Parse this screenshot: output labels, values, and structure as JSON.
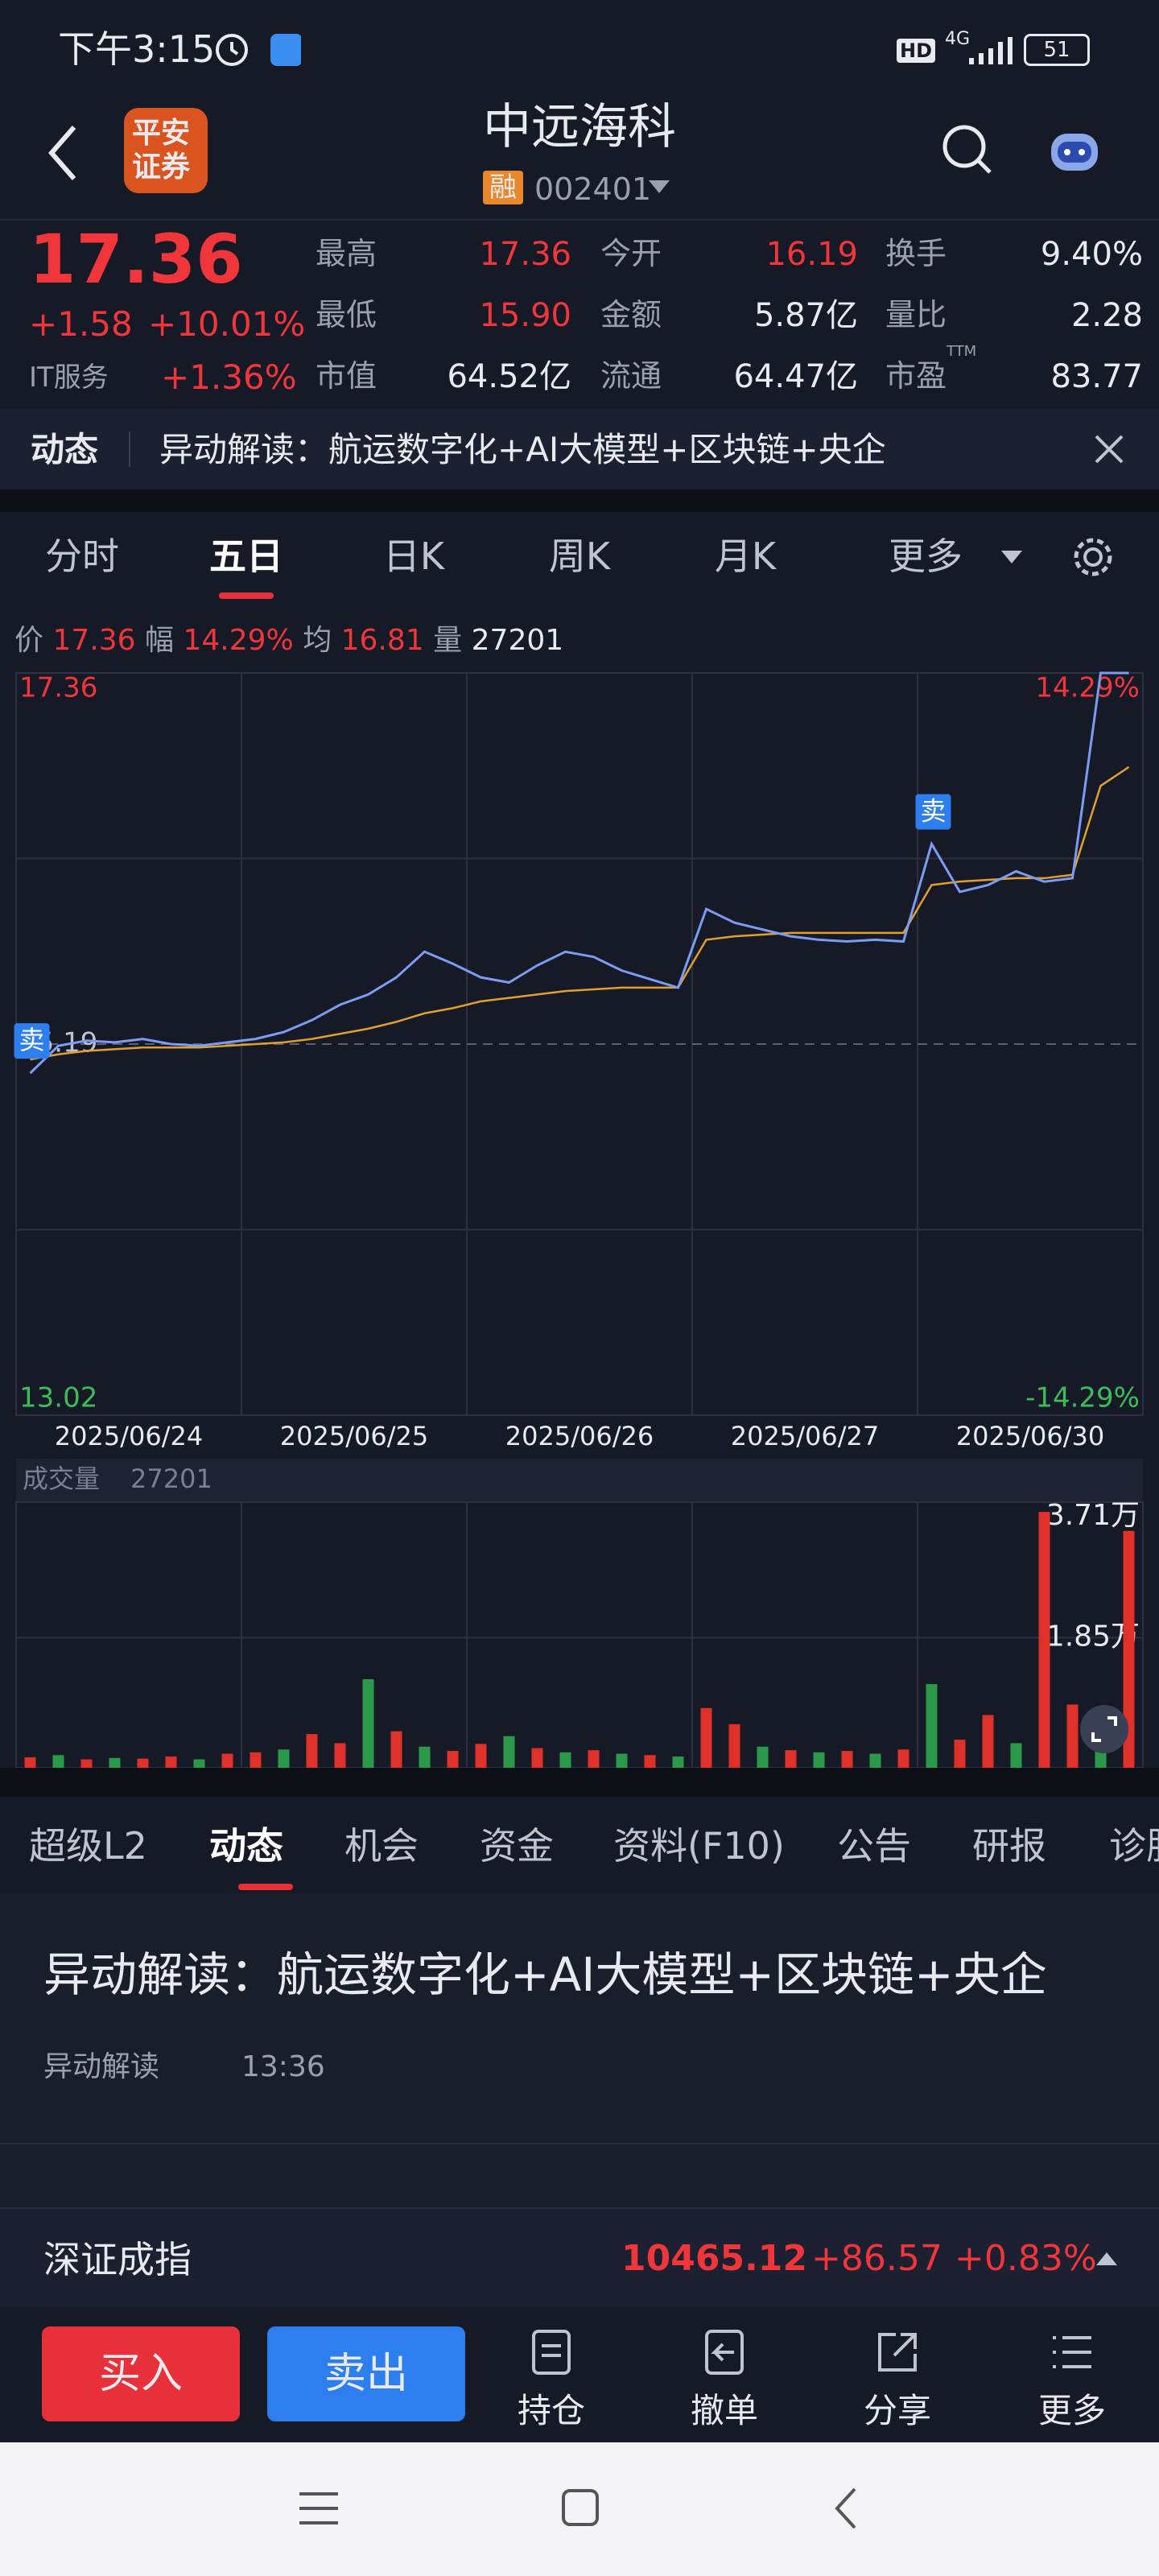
{
  "status_bar": {
    "time": "下午3:15",
    "hd": "HD",
    "network": "4G",
    "battery": "51"
  },
  "header": {
    "logo": [
      "平安",
      "证券"
    ],
    "name": "中远海科",
    "tag": "融",
    "code": "002401"
  },
  "quote": {
    "price": "17.36",
    "change": "+1.58",
    "change_pct": "+10.01%",
    "sector": "IT服务",
    "sector_pct": "+1.36%",
    "fields": [
      {
        "label": "最高",
        "value": "17.36"
      },
      {
        "label": "今开",
        "value": "16.19"
      },
      {
        "label": "换手",
        "value": "9.40%"
      },
      {
        "label": "最低",
        "value": "15.90"
      },
      {
        "label": "金额",
        "value": "5.87亿"
      },
      {
        "label": "量比",
        "value": "2.28"
      },
      {
        "label": "市值",
        "value": "64.52亿"
      },
      {
        "label": "流通",
        "value": "64.47亿"
      },
      {
        "label": "市盈",
        "value": "83.77"
      }
    ],
    "pe_note": "TTM"
  },
  "ticker": {
    "label": "动态",
    "text": "异动解读：航运数字化+AI大模型+区块链+央企"
  },
  "chart_tabs": {
    "items": [
      "分时",
      "五日",
      "日K",
      "周K",
      "月K",
      "更多"
    ],
    "active": 1
  },
  "info": {
    "price_label": "价",
    "price": "17.36",
    "range_label": "幅",
    "range": "14.29%",
    "avg_label": "均",
    "avg": "16.81",
    "vol_label": "量",
    "vol": "27201"
  },
  "chart_data": [
    {
      "type": "line",
      "days": [
        "2025/06/24",
        "2025/06/25",
        "2025/06/26",
        "2025/06/27",
        "2025/06/30"
      ],
      "series": [
        {
          "name": "价",
          "color": "#7b9cf0",
          "values": [
            15.02,
            15.18,
            15.21,
            15.2,
            15.22,
            15.19,
            15.18,
            15.2,
            15.22,
            15.26,
            15.33,
            15.42,
            15.48,
            15.58,
            15.73,
            15.66,
            15.58,
            15.55,
            15.65,
            15.73,
            15.7,
            15.62,
            15.57,
            15.52,
            15.98,
            15.9,
            15.86,
            15.82,
            15.8,
            15.79,
            15.8,
            15.79,
            16.36,
            16.08,
            16.12,
            16.2,
            16.14,
            16.16,
            17.36,
            17.36
          ]
        },
        {
          "name": "均",
          "color": "#e0a030",
          "values": [
            15.1,
            15.13,
            15.15,
            15.16,
            15.17,
            15.17,
            15.17,
            15.18,
            15.19,
            15.2,
            15.22,
            15.25,
            15.28,
            15.32,
            15.37,
            15.4,
            15.44,
            15.46,
            15.48,
            15.5,
            15.51,
            15.52,
            15.52,
            15.52,
            15.8,
            15.82,
            15.83,
            15.84,
            15.84,
            15.84,
            15.84,
            15.84,
            16.12,
            16.14,
            16.15,
            16.16,
            16.16,
            16.18,
            16.7,
            16.81
          ]
        }
      ],
      "ylim": [
        13.02,
        17.36
      ],
      "yticks": [
        13.02,
        15.19,
        17.36
      ],
      "y2lim": [
        -14.29,
        14.29
      ],
      "y2ticks": [
        {
          "value": -14.29,
          "label": "-14.29%"
        },
        {
          "value": 14.29,
          "label": "14.29%"
        }
      ],
      "grid": true,
      "annotations": [
        {
          "label": "卖",
          "at": 0
        },
        {
          "label": "卖",
          "at": 32
        }
      ]
    },
    {
      "type": "bar",
      "title": "成交量",
      "subtitle": "27201",
      "values": [
        1500,
        1800,
        1200,
        1400,
        1300,
        1600,
        1200,
        2000,
        2200,
        2600,
        4800,
        3500,
        12600,
        5200,
        3000,
        2400,
        3400,
        4500,
        2800,
        2200,
        2500,
        2000,
        1800,
        1600,
        8500,
        6200,
        3000,
        2500,
        2200,
        2400,
        2000,
        2600,
        11900,
        4000,
        7500,
        3500,
        36400,
        9000,
        5000,
        33700
      ],
      "colors": [
        "#e0302a",
        "#2a9a4a",
        "#e0302a",
        "#2a9a4a",
        "#e0302a",
        "#e0302a",
        "#2a9a4a",
        "#e0302a",
        "#e0302a",
        "#2a9a4a",
        "#e0302a",
        "#e0302a",
        "#2a9a4a",
        "#e0302a",
        "#2a9a4a",
        "#e0302a",
        "#e0302a",
        "#2a9a4a",
        "#e0302a",
        "#2a9a4a",
        "#e0302a",
        "#2a9a4a",
        "#e0302a",
        "#2a9a4a",
        "#e0302a",
        "#e0302a",
        "#2a9a4a",
        "#e0302a",
        "#2a9a4a",
        "#e0302a",
        "#2a9a4a",
        "#e0302a",
        "#2a9a4a",
        "#e0302a",
        "#e0302a",
        "#2a9a4a",
        "#e0302a",
        "#e0302a",
        "#2a9a4a",
        "#e0302a"
      ],
      "ylim": [
        0,
        37100
      ],
      "yticks": [
        {
          "value": 18500,
          "label": "1.85万"
        },
        {
          "value": 37100,
          "label": "3.71万"
        }
      ],
      "grid": true
    }
  ],
  "content_tabs": {
    "items": [
      "超级L2",
      "动态",
      "机会",
      "资金",
      "资料(F10)",
      "公告",
      "研报",
      "诊股"
    ],
    "active": 1
  },
  "news": {
    "title": "异动解读：航运数字化+AI大模型+区块链+央企",
    "source": "异动解读",
    "time": "13:36"
  },
  "index": {
    "name": "深证成指",
    "value": "10465.12",
    "change": "+86.57",
    "change_pct": "+0.83%"
  },
  "actions": {
    "buy": "买入",
    "sell": "卖出",
    "items": [
      "持仓",
      "撤单",
      "分享",
      "更多"
    ]
  }
}
